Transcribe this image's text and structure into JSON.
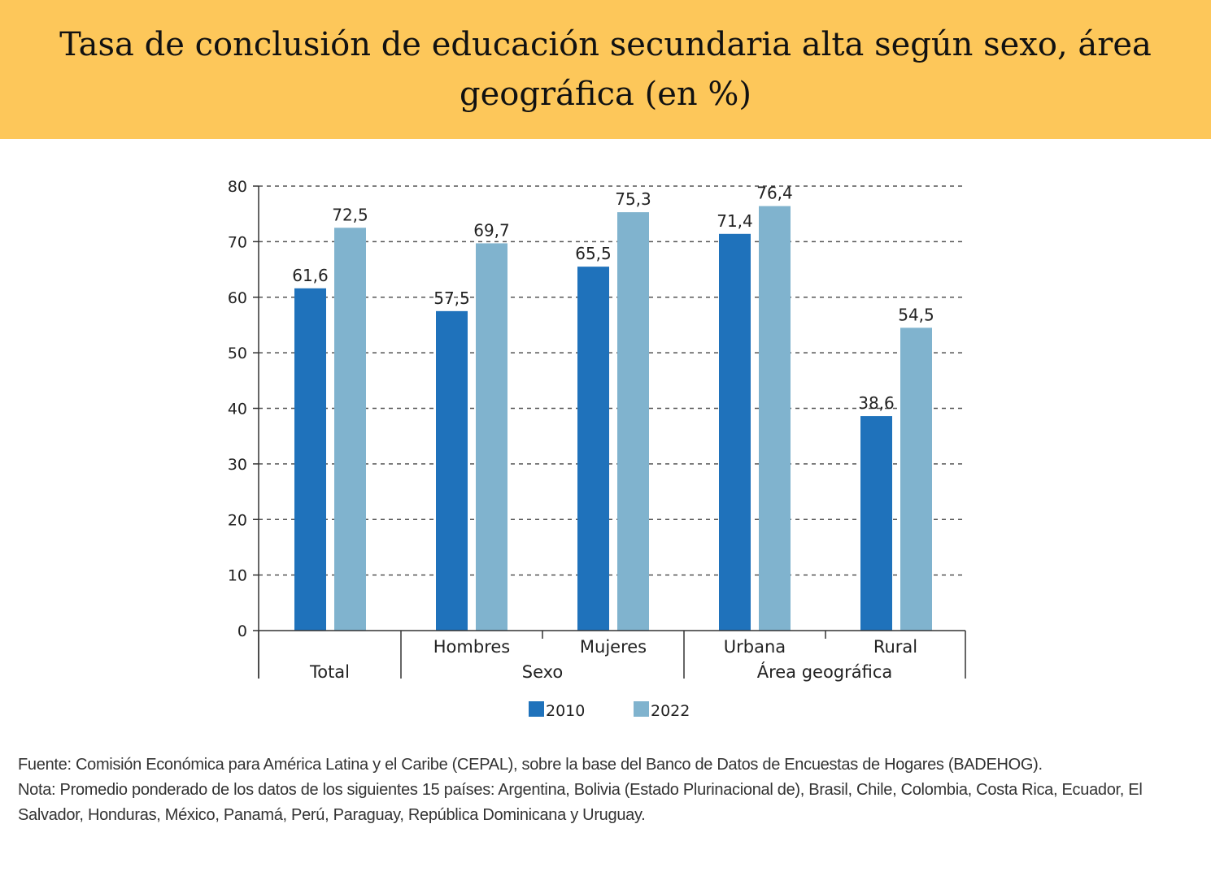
{
  "header": {
    "title": "Tasa de conclusión de educación secundaria alta según sexo, área geográfica (en %)"
  },
  "footer": {
    "source": "Fuente: Comisión Económica para América Latina y el Caribe (CEPAL), sobre la base del Banco de Datos de Encuestas de Hogares (BADEHOG).",
    "note": "Nota: Promedio ponderado de los datos de los siguientes 15 países: Argentina, Bolivia (Estado Plurinacional de), Brasil, Chile, Colombia, Costa Rica, Ecuador, El Salvador, Honduras, México, Panamá, Perú, Paraguay, República Dominicana y Uruguay."
  },
  "colors": {
    "header_bg": "#fdc75a",
    "series_2010": "#1f72bb",
    "series_2022": "#80b3ce"
  },
  "chart_data": {
    "type": "bar",
    "categories": [
      "Total",
      "Hombres",
      "Mujeres",
      "Urbana",
      "Rural"
    ],
    "groups": [
      {
        "label": "Total",
        "categories": [
          "Total"
        ]
      },
      {
        "label": "Sexo",
        "categories": [
          "Hombres",
          "Mujeres"
        ]
      },
      {
        "label": "Área geográfica",
        "categories": [
          "Urbana",
          "Rural"
        ]
      }
    ],
    "series": [
      {
        "name": "2010",
        "values": [
          61.6,
          57.5,
          65.5,
          71.4,
          38.6
        ],
        "labels": [
          "61,6",
          "57,5",
          "65,5",
          "71,4",
          "38,6"
        ],
        "color": "#1f72bb"
      },
      {
        "name": "2022",
        "values": [
          72.5,
          69.7,
          75.3,
          76.4,
          54.5
        ],
        "labels": [
          "72,5",
          "69,7",
          "75,3",
          "76,4",
          "54,5"
        ],
        "color": "#80b3ce"
      }
    ],
    "ylim": [
      0,
      80
    ],
    "yticks": [
      0,
      10,
      20,
      30,
      40,
      50,
      60,
      70,
      80
    ],
    "grid": "horizontal dashed",
    "legend": "bottom-center"
  }
}
